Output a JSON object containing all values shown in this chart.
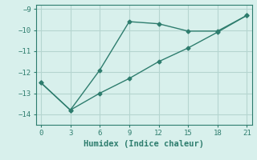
{
  "line1_x": [
    0,
    3,
    6,
    9,
    12,
    15,
    18,
    21
  ],
  "line1_y": [
    -12.5,
    -13.8,
    -11.9,
    -9.6,
    -9.7,
    -10.05,
    -10.05,
    -9.3
  ],
  "line2_x": [
    0,
    3,
    6,
    9,
    12,
    15,
    18,
    21
  ],
  "line2_y": [
    -12.5,
    -13.8,
    -13.0,
    -12.3,
    -11.5,
    -10.85,
    -10.1,
    -9.3
  ],
  "line_color": "#2e7d6e",
  "bg_color": "#d8f0ec",
  "grid_color": "#b5d5d0",
  "xlabel": "Humidex (Indice chaleur)",
  "xlim": [
    -0.5,
    21.5
  ],
  "ylim": [
    -14.5,
    -8.8
  ],
  "xticks": [
    0,
    3,
    6,
    9,
    12,
    15,
    18,
    21
  ],
  "yticks": [
    -14,
    -13,
    -12,
    -11,
    -10,
    -9
  ],
  "marker": "D",
  "markersize": 2.5,
  "linewidth": 1.0,
  "tick_fontsize": 6.5,
  "xlabel_fontsize": 7.5
}
